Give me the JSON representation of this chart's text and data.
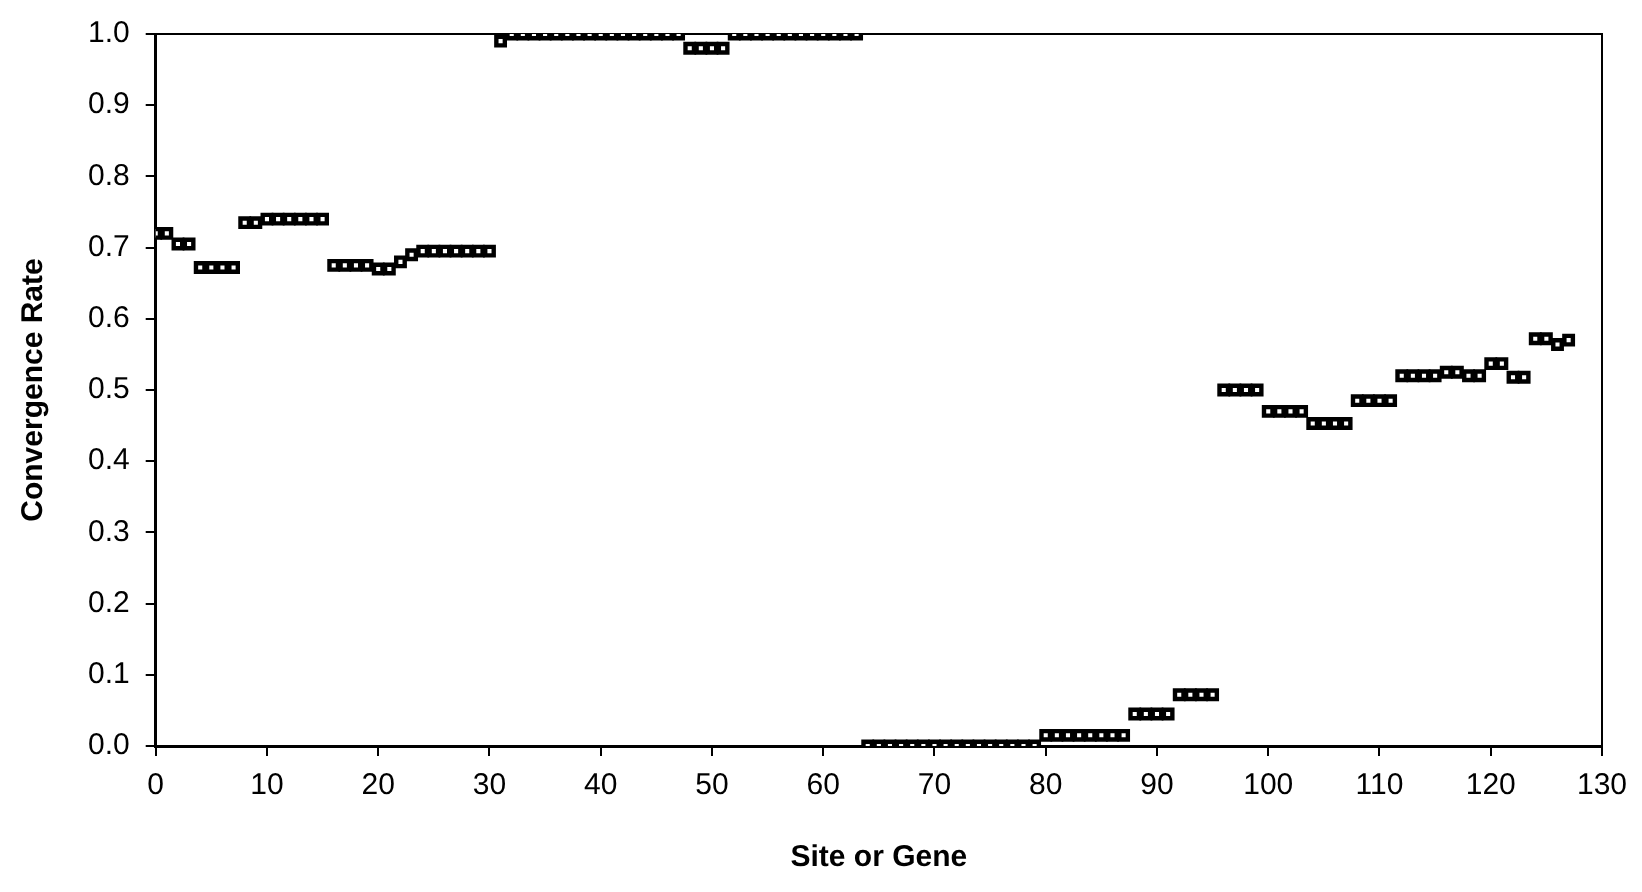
{
  "chart_data": {
    "type": "scatter",
    "xlabel": "Site or Gene",
    "ylabel": "Convergence Rate",
    "x": [
      0,
      1,
      2,
      3,
      4,
      5,
      6,
      7,
      8,
      9,
      10,
      11,
      12,
      13,
      14,
      15,
      16,
      17,
      18,
      19,
      20,
      21,
      22,
      23,
      24,
      25,
      26,
      27,
      28,
      29,
      30,
      31,
      32,
      33,
      34,
      35,
      36,
      37,
      38,
      39,
      40,
      41,
      42,
      43,
      44,
      45,
      46,
      47,
      48,
      49,
      50,
      51,
      52,
      53,
      54,
      55,
      56,
      57,
      58,
      59,
      60,
      61,
      62,
      63,
      64,
      65,
      66,
      67,
      68,
      69,
      70,
      71,
      72,
      73,
      74,
      75,
      76,
      77,
      78,
      79,
      80,
      81,
      82,
      83,
      84,
      85,
      86,
      87,
      88,
      89,
      90,
      91,
      92,
      93,
      94,
      95,
      96,
      97,
      98,
      99,
      100,
      101,
      102,
      103,
      104,
      105,
      106,
      107,
      108,
      109,
      110,
      111,
      112,
      113,
      114,
      115,
      116,
      117,
      118,
      119,
      120,
      121,
      122,
      123,
      124,
      125,
      126,
      127
    ],
    "series": [
      {
        "color": "#000000",
        "values": [
          0.72,
          0.72,
          0.705,
          0.705,
          0.672,
          0.672,
          0.672,
          0.672,
          0.735,
          0.735,
          0.74,
          0.74,
          0.74,
          0.74,
          0.74,
          0.74,
          0.675,
          0.675,
          0.675,
          0.675,
          0.67,
          0.67,
          0.68,
          0.69,
          0.695,
          0.695,
          0.695,
          0.695,
          0.695,
          0.695,
          0.695,
          0.99,
          1.0,
          1.0,
          1.0,
          1.0,
          1.0,
          1.0,
          1.0,
          1.0,
          1.0,
          1.0,
          1.0,
          1.0,
          1.0,
          1.0,
          1.0,
          1.0,
          0.98,
          0.98,
          0.98,
          0.98,
          1.0,
          1.0,
          1.0,
          1.0,
          1.0,
          1.0,
          1.0,
          1.0,
          1.0,
          1.0,
          1.0,
          1.0,
          0.0,
          0.0,
          0.0,
          0.0,
          0.0,
          0.0,
          0.0,
          0.0,
          0.0,
          0.0,
          0.0,
          0.0,
          0.0,
          0.0,
          0.0,
          0.0,
          0.015,
          0.015,
          0.015,
          0.015,
          0.015,
          0.015,
          0.015,
          0.015,
          0.045,
          0.045,
          0.045,
          0.045,
          0.072,
          0.072,
          0.072,
          0.072,
          0.5,
          0.5,
          0.5,
          0.5,
          0.47,
          0.47,
          0.47,
          0.47,
          0.453,
          0.453,
          0.453,
          0.453,
          0.485,
          0.485,
          0.485,
          0.485,
          0.52,
          0.52,
          0.52,
          0.52,
          0.525,
          0.525,
          0.52,
          0.52,
          0.537,
          0.537,
          0.518,
          0.518,
          0.572,
          0.572,
          0.564,
          0.57
        ]
      }
    ],
    "xlim": [
      0,
      130
    ],
    "xticks": [
      0,
      10,
      20,
      30,
      40,
      50,
      60,
      70,
      80,
      90,
      100,
      110,
      120,
      130
    ],
    "ylim": [
      0,
      1
    ],
    "yticks": [
      {
        "value": 0,
        "label": "0.0"
      },
      {
        "value": 0.1,
        "label": "0.1"
      },
      {
        "value": 0.2,
        "label": "0.2"
      },
      {
        "value": 0.3,
        "label": "0.3"
      },
      {
        "value": 0.4,
        "label": "0.4"
      },
      {
        "value": 0.5,
        "label": "0.5"
      },
      {
        "value": 0.6,
        "label": "0.6"
      },
      {
        "value": 0.7,
        "label": "0.7"
      },
      {
        "value": 0.8,
        "label": "0.8"
      },
      {
        "value": 0.9,
        "label": "0.9"
      },
      {
        "value": 1,
        "label": "1.0"
      }
    ],
    "grid": false,
    "legend": false,
    "marker": "square"
  }
}
